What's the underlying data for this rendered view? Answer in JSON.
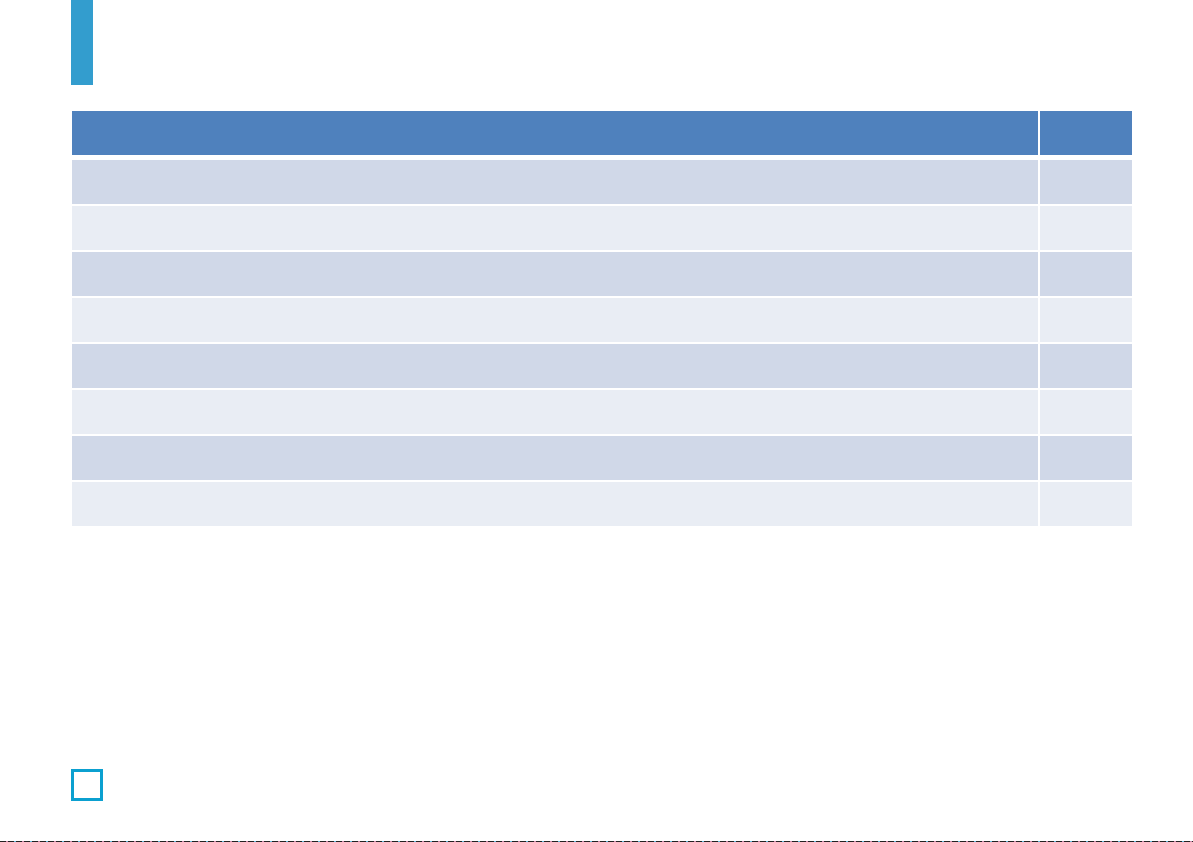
{
  "colors": {
    "accent_bar": "#339dce",
    "header": "#4f81bd",
    "row_odd": "#d0d8e8",
    "row_even": "#e9edf4",
    "page_box": "#0ba0d0"
  },
  "table": {
    "headers": [
      "",
      ""
    ],
    "rows": [
      [
        "",
        ""
      ],
      [
        "",
        ""
      ],
      [
        "",
        ""
      ],
      [
        "",
        ""
      ],
      [
        "",
        ""
      ],
      [
        "",
        ""
      ],
      [
        "",
        ""
      ],
      [
        "",
        ""
      ]
    ]
  }
}
